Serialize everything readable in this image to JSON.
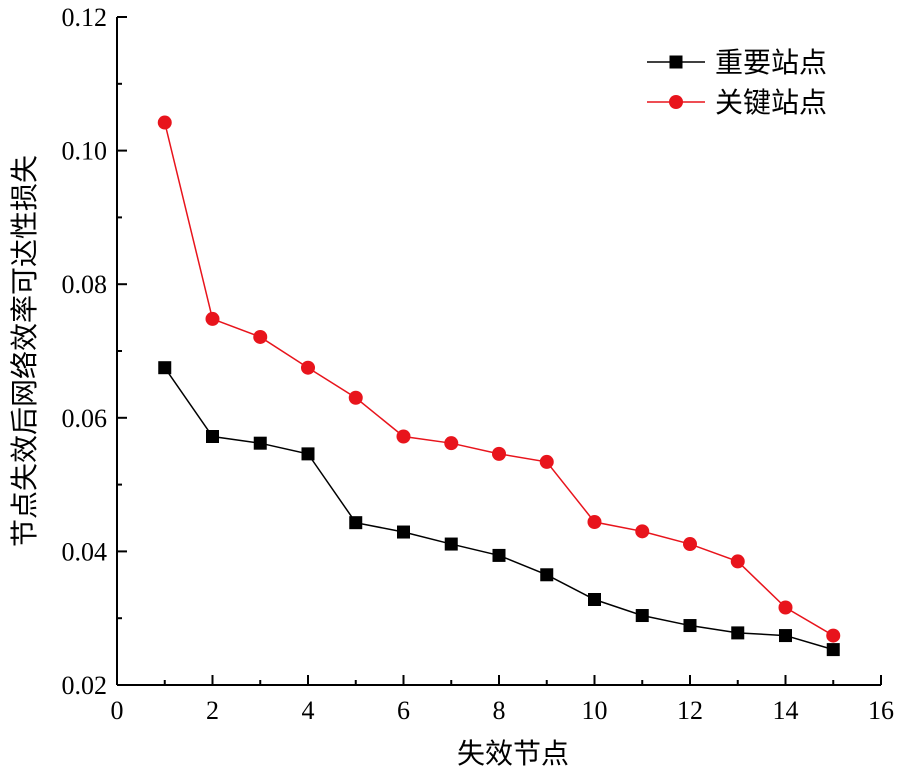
{
  "chart_data": {
    "type": "line",
    "xlabel": "失效节点",
    "ylabel": "节点失效后网络效率可达性损失",
    "xlim": [
      0,
      16
    ],
    "ylim": [
      0.02,
      0.12
    ],
    "x_ticks": [
      0,
      2,
      4,
      6,
      8,
      10,
      12,
      14,
      16
    ],
    "y_ticks": [
      0.02,
      0.04,
      0.06,
      0.08,
      0.1,
      0.12
    ],
    "x_tick_labels": [
      "0",
      "2",
      "4",
      "6",
      "8",
      "10",
      "12",
      "14",
      "16"
    ],
    "y_tick_labels": [
      "0.02",
      "0.04",
      "0.06",
      "0.08",
      "0.10",
      "0.12"
    ],
    "grid": false,
    "legend_position": "top-right",
    "x": [
      1,
      2,
      3,
      4,
      5,
      6,
      7,
      8,
      9,
      10,
      11,
      12,
      13,
      14,
      15
    ],
    "series": [
      {
        "name": "重要站点",
        "color": "#000000",
        "marker": "square",
        "values": [
          0.0675,
          0.0572,
          0.0562,
          0.0546,
          0.0443,
          0.0429,
          0.0411,
          0.0394,
          0.0365,
          0.0328,
          0.0304,
          0.0289,
          0.0278,
          0.0274,
          0.0253
        ]
      },
      {
        "name": "关键站点",
        "color": "#e8141c",
        "marker": "circle",
        "values": [
          0.1042,
          0.0748,
          0.0721,
          0.0675,
          0.063,
          0.0572,
          0.0562,
          0.0546,
          0.0534,
          0.0444,
          0.043,
          0.0411,
          0.0385,
          0.0316,
          0.0274
        ]
      }
    ]
  }
}
